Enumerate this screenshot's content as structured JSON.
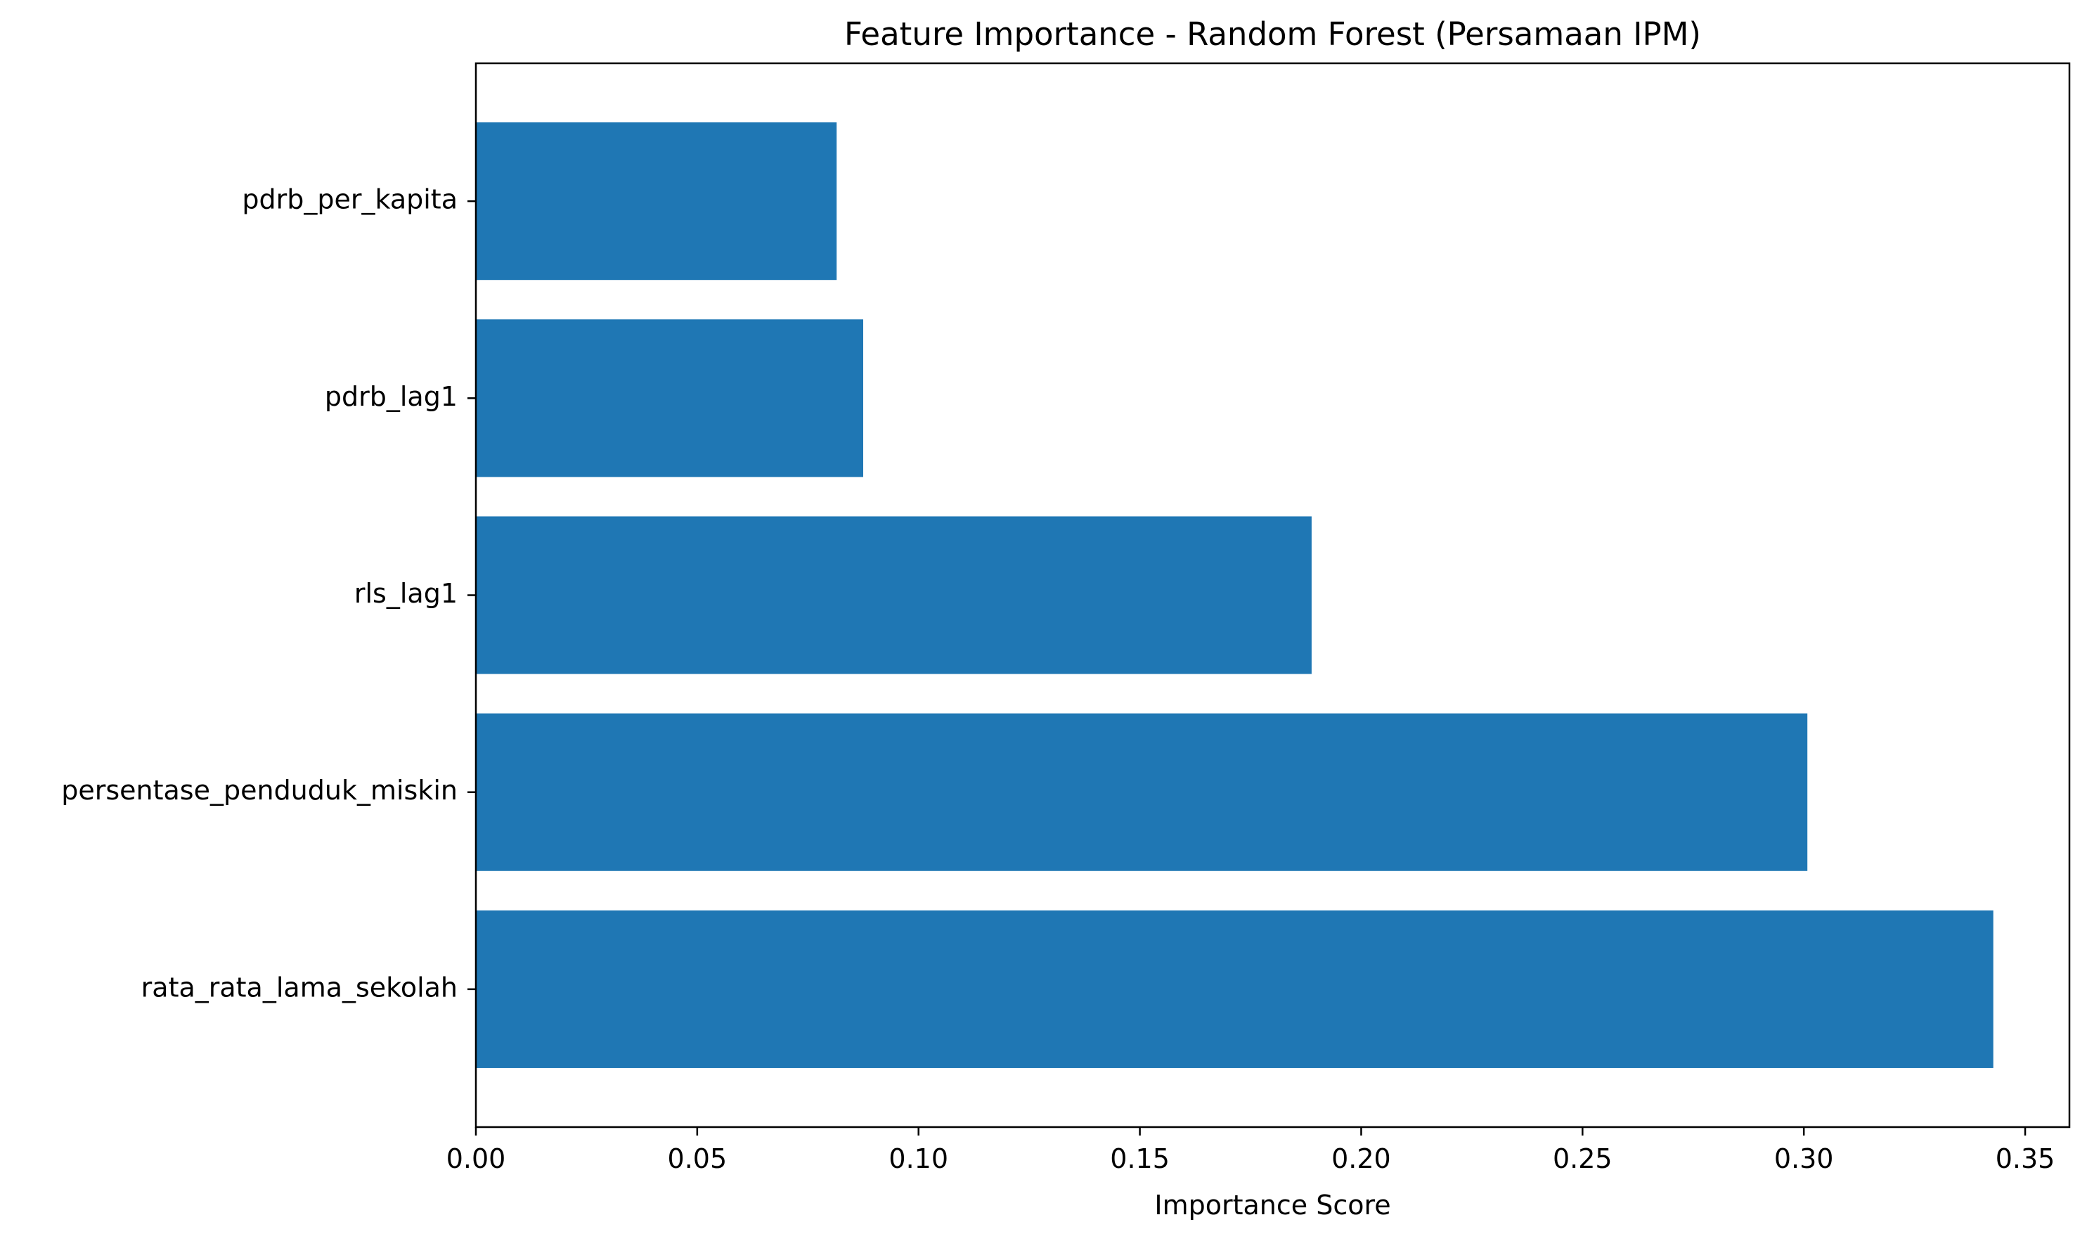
{
  "chart_data": {
    "type": "bar",
    "orientation": "horizontal",
    "title": "Feature Importance - Random Forest (Persamaan IPM)",
    "xlabel": "Importance Score",
    "ylabel": "",
    "categories": [
      "rata_rata_lama_sekolah",
      "persentase_penduduk_miskin",
      "rls_lag1",
      "pdrb_lag1",
      "pdrb_per_kapita"
    ],
    "values": [
      0.3428,
      0.3008,
      0.1888,
      0.0875,
      0.0815
    ],
    "xlim": [
      0,
      0.36
    ],
    "xticks": [
      0.0,
      0.05,
      0.1,
      0.15,
      0.2,
      0.25,
      0.3,
      0.35
    ],
    "xtick_labels": [
      "0.00",
      "0.05",
      "0.10",
      "0.15",
      "0.20",
      "0.25",
      "0.30",
      "0.35"
    ],
    "bar_color": "#1f77b4",
    "grid": false,
    "legend": "none"
  }
}
